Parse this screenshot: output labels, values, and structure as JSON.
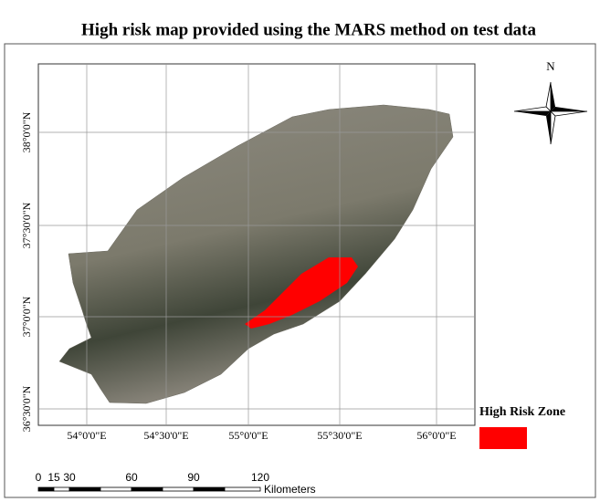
{
  "title": "High risk map provided using the MARS method on test data",
  "north_label": "N",
  "longitude_labels": [
    "54°0'0\"E",
    "54°30'0\"E",
    "55°0'0\"E",
    "55°30'0\"E",
    "56°0'0\"E"
  ],
  "latitude_labels": [
    "38°0'0\"N",
    "37°30'0\"N",
    "37°0'0\"N",
    "36°30'0\"N"
  ],
  "legend": {
    "label": "High Risk Zone"
  },
  "scale_bar": {
    "labels": [
      "0",
      "15",
      "30",
      "60",
      "90",
      "120"
    ],
    "unit": "Kilometers"
  }
}
